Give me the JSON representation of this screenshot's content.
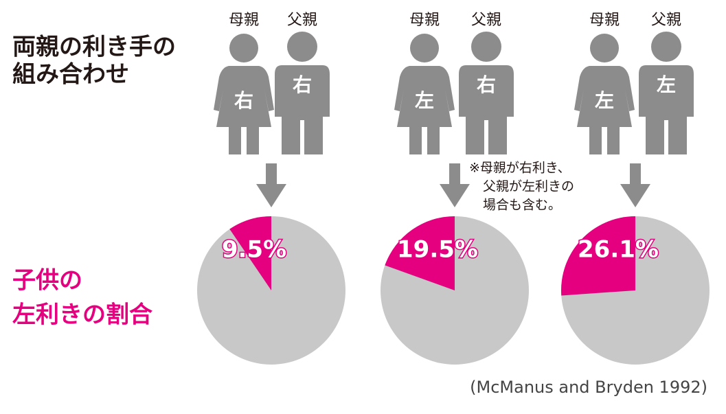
{
  "row_labels": {
    "parents": [
      "両親の利き手の",
      "組み合わせ"
    ],
    "child": [
      "子供の",
      "左利きの割合"
    ]
  },
  "groups": [
    {
      "mother": "母親",
      "father": "父親",
      "mother_hand": "右",
      "father_hand": "右"
    },
    {
      "mother": "母親",
      "father": "父親",
      "mother_hand": "左",
      "father_hand": "右"
    },
    {
      "mother": "母親",
      "father": "父親",
      "mother_hand": "左",
      "father_hand": "左"
    }
  ],
  "note": [
    "※母親が右利き、",
    "父親が左利きの",
    "場合も含む。"
  ],
  "source": "(McManus and Bryden 1992)",
  "chart_data": [
    {
      "type": "pie",
      "values": [
        9.5
      ],
      "value_labels": [
        "9.5%"
      ],
      "color": "#e4007f",
      "rest_color": "#c8c8c8"
    },
    {
      "type": "pie",
      "values": [
        19.5
      ],
      "value_labels": [
        "19.5%"
      ],
      "color": "#e4007f",
      "rest_color": "#c8c8c8"
    },
    {
      "type": "pie",
      "values": [
        26.1
      ],
      "value_labels": [
        "26.1%"
      ],
      "color": "#e4007f",
      "rest_color": "#c8c8c8"
    }
  ]
}
